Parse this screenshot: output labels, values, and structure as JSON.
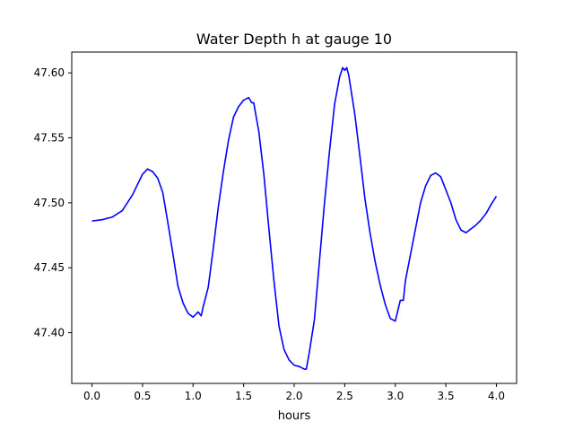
{
  "chart_data": {
    "type": "line",
    "title": "Water Depth h at gauge 10",
    "xlabel": "hours",
    "ylabel": "",
    "xlim": [
      -0.2,
      4.2
    ],
    "ylim": [
      47.361,
      47.616
    ],
    "xticks": [
      0.0,
      0.5,
      1.0,
      1.5,
      2.0,
      2.5,
      3.0,
      3.5,
      4.0
    ],
    "xtick_labels": [
      "0.0",
      "0.5",
      "1.0",
      "1.5",
      "2.0",
      "2.5",
      "3.0",
      "3.5",
      "4.0"
    ],
    "yticks": [
      47.4,
      47.45,
      47.5,
      47.55,
      47.6
    ],
    "ytick_labels": [
      "47.40",
      "47.45",
      "47.50",
      "47.55",
      "47.60"
    ],
    "grid": false,
    "series": [
      {
        "color": "#0000ff",
        "x": [
          0.0,
          0.1,
          0.2,
          0.3,
          0.4,
          0.5,
          0.55,
          0.6,
          0.65,
          0.7,
          0.75,
          0.8,
          0.85,
          0.9,
          0.95,
          1.0,
          1.05,
          1.08,
          1.1,
          1.15,
          1.2,
          1.25,
          1.3,
          1.35,
          1.4,
          1.45,
          1.5,
          1.55,
          1.58,
          1.6,
          1.62,
          1.65,
          1.7,
          1.75,
          1.8,
          1.85,
          1.9,
          1.95,
          2.0,
          2.05,
          2.1,
          2.12,
          2.15,
          2.2,
          2.25,
          2.3,
          2.35,
          2.4,
          2.45,
          2.48,
          2.5,
          2.52,
          2.54,
          2.56,
          2.6,
          2.65,
          2.7,
          2.75,
          2.8,
          2.85,
          2.9,
          2.95,
          3.0,
          3.05,
          3.08,
          3.1,
          3.15,
          3.2,
          3.25,
          3.3,
          3.35,
          3.4,
          3.45,
          3.5,
          3.55,
          3.6,
          3.65,
          3.7,
          3.75,
          3.8,
          3.85,
          3.9,
          3.95,
          4.0
        ],
        "values": [
          47.486,
          47.487,
          47.489,
          47.494,
          47.506,
          47.522,
          47.526,
          47.524,
          47.519,
          47.508,
          47.485,
          47.461,
          47.436,
          47.423,
          47.415,
          47.412,
          47.416,
          47.413,
          47.42,
          47.435,
          47.465,
          47.497,
          47.524,
          47.548,
          47.566,
          47.574,
          47.579,
          47.581,
          47.577,
          47.577,
          47.568,
          47.555,
          47.522,
          47.48,
          47.44,
          47.405,
          47.387,
          47.379,
          47.375,
          47.374,
          47.372,
          47.372,
          47.385,
          47.41,
          47.455,
          47.5,
          47.54,
          47.576,
          47.597,
          47.604,
          47.602,
          47.604,
          47.598,
          47.588,
          47.568,
          47.536,
          47.503,
          47.477,
          47.455,
          47.437,
          47.422,
          47.411,
          47.409,
          47.425,
          47.425,
          47.44,
          47.46,
          47.48,
          47.5,
          47.513,
          47.521,
          47.523,
          47.52,
          47.51,
          47.5,
          47.487,
          47.479,
          47.477,
          47.48,
          47.483,
          47.487,
          47.492,
          47.499,
          47.505
        ]
      }
    ]
  }
}
